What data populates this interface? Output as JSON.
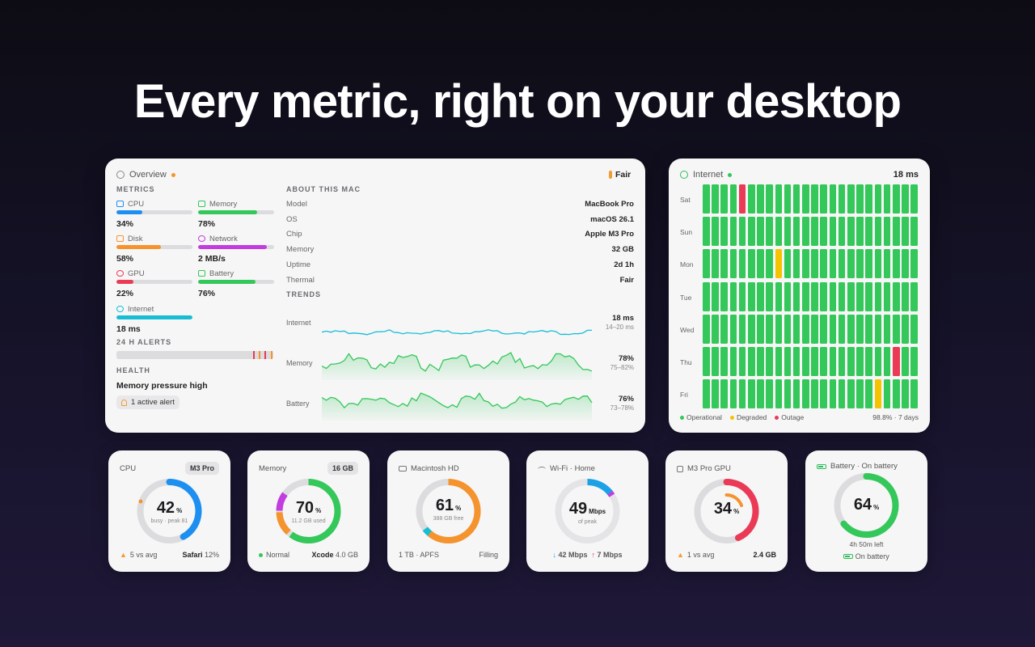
{
  "headline": "Every metric, right on your desktop",
  "colors": {
    "blue": "#1d8ff0",
    "green": "#34c759",
    "orange": "#f5932e",
    "purple": "#c23ddf",
    "red": "#ea3a56",
    "cyan": "#17bdd4",
    "yellow": "#f5c300",
    "track": "#dcdcdf"
  },
  "overview": {
    "title": "Overview",
    "thermal_badge": "Fair",
    "metrics_title": "METRICS",
    "metrics": [
      {
        "label": "CPU",
        "value": "34%",
        "fraction": 0.34,
        "icon": "cpu-icon",
        "color": "#1d8ff0"
      },
      {
        "label": "Memory",
        "value": "78%",
        "fraction": 0.78,
        "icon": "memory-icon",
        "color": "#34c759"
      },
      {
        "label": "Disk",
        "value": "58%",
        "fraction": 0.58,
        "icon": "disk-icon",
        "color": "#f5932e"
      },
      {
        "label": "Network",
        "value": "2 MB/s",
        "fraction": 0.9,
        "icon": "network-icon",
        "color": "#c23ddf"
      },
      {
        "label": "GPU",
        "value": "22%",
        "fraction": 0.22,
        "icon": "gpu-icon",
        "color": "#ea3a56"
      },
      {
        "label": "Battery",
        "value": "76%",
        "fraction": 0.76,
        "icon": "battery-icon",
        "color": "#34c759"
      },
      {
        "label": "Internet",
        "value": "18 ms",
        "fraction": 1.0,
        "icon": "globe-icon",
        "color": "#17bdd4"
      }
    ],
    "alerts_title": "24 H ALERTS",
    "health_title": "HEALTH",
    "health_message": "Memory pressure high",
    "active_alert": "1 active alert",
    "about_title": "ABOUT THIS MAC",
    "about": [
      {
        "key": "Model",
        "value": "MacBook Pro"
      },
      {
        "key": "OS",
        "value": "macOS 26.1"
      },
      {
        "key": "Chip",
        "value": "Apple M3 Pro"
      },
      {
        "key": "Memory",
        "value": "32 GB"
      },
      {
        "key": "Uptime",
        "value": "2d 1h"
      },
      {
        "key": "Thermal",
        "value": "Fair"
      }
    ],
    "trends_title": "TRENDS",
    "trends": [
      {
        "label": "Internet",
        "value": "18 ms",
        "range": "14–20 ms",
        "color": "#17bdd4"
      },
      {
        "label": "Memory",
        "value": "78%",
        "range": "75–82%",
        "color": "#34c759"
      },
      {
        "label": "Battery",
        "value": "76%",
        "range": "73–78%",
        "color": "#34c759"
      }
    ]
  },
  "internet": {
    "title": "Internet",
    "latency": "18 ms",
    "days": [
      "Sat",
      "Sun",
      "Mon",
      "Tue",
      "Wed",
      "Thu",
      "Fri"
    ],
    "status_grid": [
      "oooooooooooooooooooooooo",
      "oooooooooooooooooooooooo",
      "oooooooooooooooooooooooo",
      "oooooooooooooooooooooooo",
      "oooooooooooooooooooooooo",
      "oooooooooooooooooooooooo",
      "oooooooooooooooooooooooo"
    ],
    "outages": [
      {
        "day": 0,
        "slot": 4,
        "status": "outage"
      },
      {
        "day": 5,
        "slot": 21,
        "status": "outage"
      }
    ],
    "degraded": [
      {
        "day": 2,
        "slot": 8,
        "status": "degraded"
      },
      {
        "day": 6,
        "slot": 19,
        "status": "degraded"
      }
    ],
    "legend": [
      "Operational",
      "Degraded",
      "Outage"
    ],
    "summary": "98.8% · 7 days"
  },
  "widgets": {
    "cpu": {
      "title": "CPU",
      "badge": "M3 Pro",
      "value": "42",
      "unit": "%",
      "sub": "busy · peak 81",
      "footer_left": "5 vs avg",
      "footer_right_app": "Safari",
      "footer_right_value": "12%"
    },
    "memory": {
      "title": "Memory",
      "badge": "16 GB",
      "value": "70",
      "unit": "%",
      "sub": "11.2 GB used",
      "footer_left": "Normal",
      "footer_right_app": "Xcode",
      "footer_right_value": "4.0 GB"
    },
    "disk": {
      "title": "Macintosh HD",
      "value": "61",
      "unit": "%",
      "sub": "388 GB free",
      "footer_left": "1 TB · APFS",
      "footer_right": "Filling"
    },
    "wifi": {
      "title": "Wi-Fi · Home",
      "value": "49",
      "unit": "Mbps",
      "sub": "of peak",
      "down": "42 Mbps",
      "up": "7 Mbps"
    },
    "gpu": {
      "title": "M3 Pro GPU",
      "value": "34",
      "unit": "%",
      "footer_left": "1 vs avg",
      "footer_right": "2.4 GB"
    },
    "battery": {
      "title": "Battery · On battery",
      "value": "64",
      "unit": "%",
      "sub": "4h 50m left",
      "footer": "On battery"
    }
  }
}
